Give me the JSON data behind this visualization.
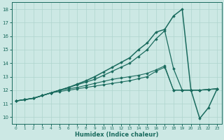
{
  "xlabel": "Humidex (Indice chaleur)",
  "background_color": "#cce8e4",
  "line_color": "#1a6b5e",
  "xlim": [
    -0.5,
    23.5
  ],
  "ylim": [
    9.5,
    18.5
  ],
  "xticks": [
    0,
    1,
    2,
    3,
    4,
    5,
    6,
    7,
    8,
    9,
    10,
    11,
    12,
    13,
    14,
    15,
    16,
    17,
    18,
    19,
    20,
    21,
    22,
    23
  ],
  "yticks": [
    10,
    11,
    12,
    13,
    14,
    15,
    16,
    17,
    18
  ],
  "series": [
    [
      11.2,
      11.3,
      11.4,
      11.6,
      11.8,
      11.9,
      12.0,
      12.1,
      12.2,
      12.3,
      12.4,
      12.5,
      12.6,
      12.7,
      12.85,
      13.0,
      13.4,
      13.7,
      12.0,
      12.0,
      12.0,
      12.0,
      12.05,
      12.1
    ],
    [
      11.2,
      11.3,
      11.4,
      11.6,
      11.8,
      12.0,
      12.1,
      12.2,
      12.35,
      12.5,
      12.65,
      12.8,
      12.9,
      13.0,
      13.1,
      13.25,
      13.5,
      13.8,
      12.0,
      12.0,
      12.0,
      12.0,
      12.05,
      12.1
    ],
    [
      11.2,
      11.3,
      11.4,
      11.6,
      11.8,
      12.0,
      12.2,
      12.4,
      12.6,
      12.8,
      13.1,
      13.4,
      13.7,
      14.0,
      14.5,
      15.0,
      15.8,
      16.4,
      13.6,
      12.0,
      12.0,
      12.0,
      12.05,
      12.1
    ],
    [
      11.2,
      11.3,
      11.4,
      11.6,
      11.8,
      12.0,
      12.2,
      12.45,
      12.7,
      13.0,
      13.35,
      13.7,
      14.05,
      14.4,
      15.0,
      15.5,
      16.3,
      16.5,
      17.5,
      18.0,
      12.0,
      9.9,
      10.7,
      12.1
    ]
  ],
  "grid_color": "#aed4ce",
  "marker": "D",
  "markersize": 1.8,
  "linewidths": [
    0.8,
    0.8,
    0.9,
    1.1
  ]
}
